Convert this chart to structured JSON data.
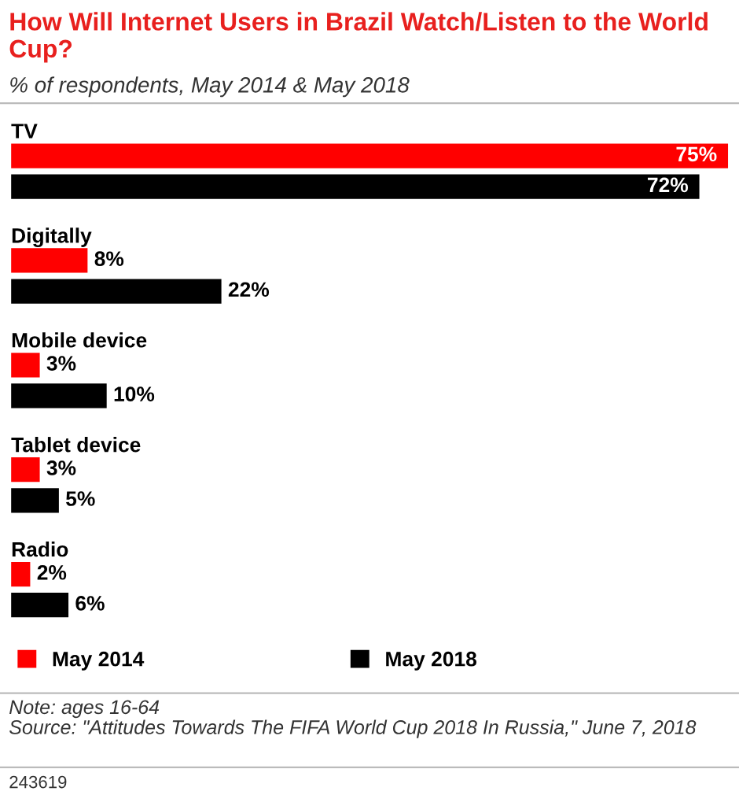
{
  "chart_data": {
    "type": "bar",
    "orientation": "horizontal",
    "title": "How Will Internet Users in Brazil Watch/Listen to the World Cup?",
    "subtitle": "% of respondents, May 2014 & May 2018",
    "categories": [
      "TV",
      "Digitally",
      "Mobile device",
      "Tablet device",
      "Radio"
    ],
    "series": [
      {
        "name": "May 2014",
        "color": "#ff0000",
        "values": [
          75,
          8,
          3,
          3,
          2
        ],
        "value_labels": [
          "75%",
          "8%",
          "3%",
          "3%",
          "2%"
        ]
      },
      {
        "name": "May 2018",
        "color": "#000000",
        "values": [
          72,
          22,
          10,
          5,
          6
        ],
        "value_labels": [
          "72%",
          "22%",
          "10%",
          "5%",
          "6%"
        ]
      }
    ],
    "legend": "bottom",
    "annotations": [
      "Note: ages 16-64",
      "Source: \"Attitudes Towards The FIFA World Cup 2018 In Russia,\" June 7, 2018",
      "243619"
    ]
  }
}
